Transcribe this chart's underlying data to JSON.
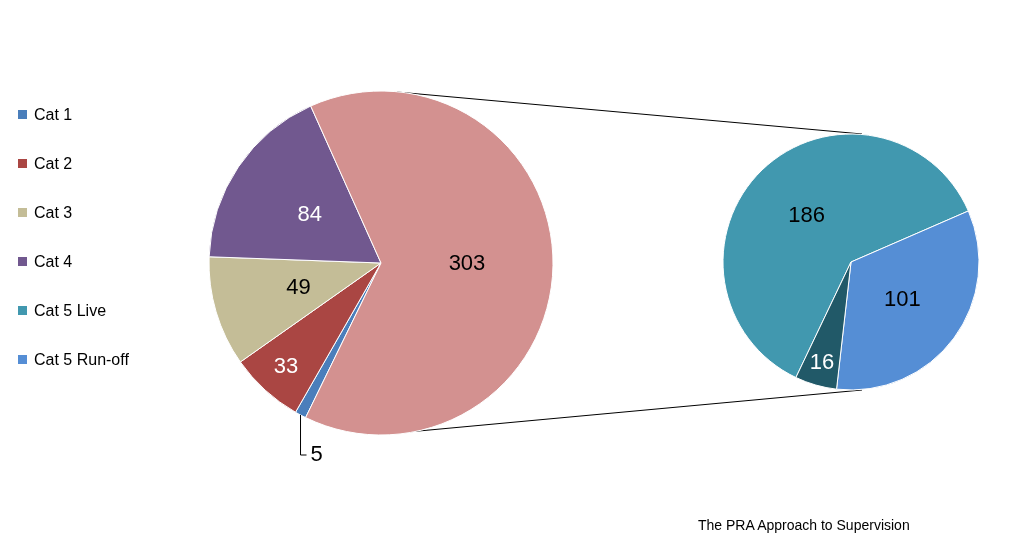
{
  "chart_data": [
    {
      "type": "pie",
      "categories": [
        "Cat 1",
        "Cat 2",
        "Cat 3",
        "Cat 4",
        null
      ],
      "values": [
        5,
        33,
        49,
        84,
        303
      ],
      "colors": [
        "#4a7ebb",
        "#aa4643",
        "#c4bd97",
        "#71588f",
        "#d39190"
      ],
      "data_labels": true,
      "legend": "left",
      "annotations": [
        "The PRA Approach to Supervision"
      ]
    },
    {
      "type": "pie",
      "categories": [
        "Cat 5 Live",
        "Cat 5 Run-off",
        null
      ],
      "values": [
        186,
        101,
        16
      ],
      "colors": [
        "#4198af",
        "#558ed5",
        "#215968"
      ],
      "data_labels": true,
      "legend": "left"
    }
  ]
}
